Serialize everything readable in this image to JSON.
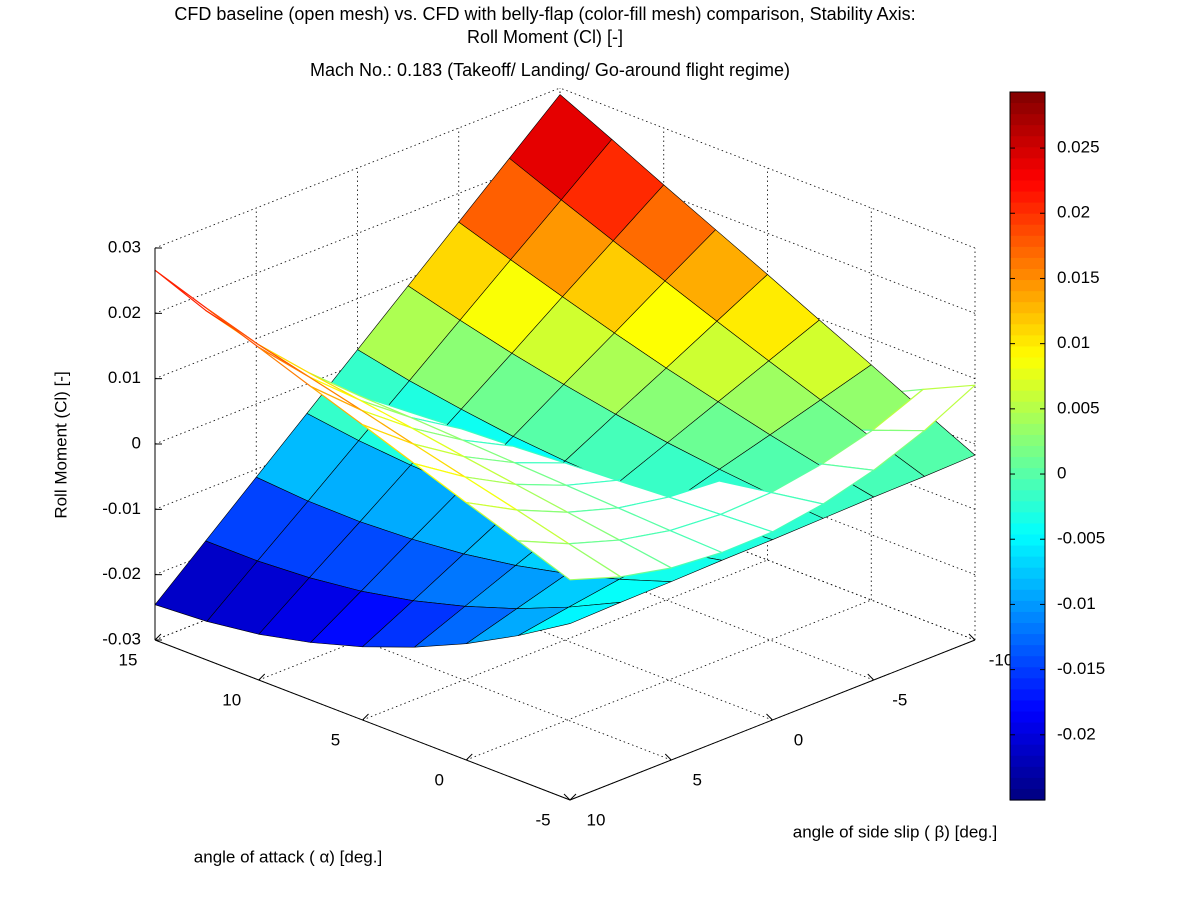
{
  "chart_data": {
    "type": "surface",
    "title": [
      "CFD baseline (open mesh) vs. CFD with belly-flap (color-fill mesh) comparison, Stability Axis:",
      "Roll Moment (Cl) [-]"
    ],
    "subtitle": "Mach No.: 0.183 (Takeoff/ Landing/ Go-around flight regime)",
    "xlabel": "angle of attack ( α) [deg.]",
    "ylabel": "angle of side slip ( β) [deg.]",
    "zlabel": "Roll Moment (Cl) [-]",
    "x": [
      -5,
      -2.5,
      0,
      2.5,
      5,
      7.5,
      10,
      12.5,
      15
    ],
    "y": [
      -10,
      -7.5,
      -5,
      -2.5,
      0,
      2.5,
      5,
      7.5,
      10
    ],
    "xlim": [
      -5,
      15
    ],
    "ylim": [
      -10,
      10
    ],
    "zlim": [
      -0.03,
      0.03
    ],
    "xticks": [
      -5,
      0,
      5,
      10,
      15
    ],
    "yticks": [
      -10,
      -5,
      0,
      5,
      10
    ],
    "zticks": [
      -0.03,
      -0.02,
      -0.01,
      0,
      0.01,
      0.02,
      0.03
    ],
    "grid": true,
    "colormap": "jet",
    "clim": [
      -0.025,
      0.0293
    ],
    "cticks": [
      -0.02,
      -0.015,
      -0.01,
      -0.005,
      0,
      0.005,
      0.01,
      0.015,
      0.02,
      0.025
    ],
    "series": [
      {
        "style": "mesh",
        "z": [
          [
            0.009,
            0.0053,
            0.0015,
            -0.0023,
            -0.006,
            -0.0098,
            -0.0135,
            -0.0173,
            -0.021
          ],
          [
            0.0051,
            0.0021,
            -0.0008,
            -0.0037,
            -0.0066,
            -0.0096,
            -0.0125,
            -0.0154,
            -0.0183
          ],
          [
            0.0021,
            0,
            -0.0021,
            -0.0042,
            -0.0063,
            -0.0084,
            -0.0105,
            -0.0126,
            -0.0147
          ],
          [
            0,
            -0.0013,
            -0.0026,
            -0.0038,
            -0.0051,
            -0.0064,
            -0.0076,
            -0.0089,
            -0.0102
          ],
          [
            -0.0012,
            -0.0016,
            -0.002,
            -0.0025,
            -0.0029,
            -0.0034,
            -0.0038,
            -0.0043,
            -0.0047
          ],
          [
            -0.0013,
            -0.001,
            -0.0006,
            -0.0002,
            0.0002,
            0.0006,
            0.001,
            0.0013,
            0.0017
          ],
          [
            -0.0006,
            0.0006,
            0.0018,
            0.003,
            0.0042,
            0.0055,
            0.0067,
            0.0079,
            0.0091
          ],
          [
            0.0011,
            0.0031,
            0.0052,
            0.0072,
            0.0092,
            0.0113,
            0.0133,
            0.0153,
            0.0174
          ],
          [
            0.0037,
            0.0066,
            0.0094,
            0.0123,
            0.0152,
            0.018,
            0.0209,
            0.0238,
            0.0266
          ]
        ]
      },
      {
        "style": "surface",
        "z": [
          [
            -0.0017,
            0.0021,
            0.006,
            0.0098,
            0.0137,
            0.0175,
            0.0213,
            0.0252,
            0.029
          ],
          [
            -0.0019,
            0.0009,
            0.0037,
            0.0066,
            0.0096,
            0.0127,
            0.0158,
            0.019,
            0.0223
          ],
          [
            -0.002,
            -0.0004,
            0.0014,
            0.0034,
            0.0055,
            0.0078,
            0.0103,
            0.0129,
            0.0156
          ],
          [
            -0.0022,
            -0.0016,
            -0.0008,
            0.0002,
            0.0015,
            0.003,
            0.0047,
            0.0067,
            0.0089
          ],
          [
            -0.0024,
            -0.0029,
            -0.0031,
            -0.003,
            -0.0026,
            -0.0019,
            -0.0008,
            0.0005,
            0.0022
          ],
          [
            -0.0025,
            -0.0041,
            -0.0054,
            -0.0062,
            -0.0066,
            -0.0067,
            -0.0063,
            -0.0056,
            -0.0045
          ],
          [
            -0.0027,
            -0.0054,
            -0.0076,
            -0.0094,
            -0.0107,
            -0.0115,
            -0.0119,
            -0.0118,
            -0.0112
          ],
          [
            -0.0028,
            -0.0066,
            -0.0099,
            -0.0126,
            -0.0148,
            -0.0164,
            -0.0174,
            -0.0179,
            -0.0179
          ],
          [
            -0.003,
            -0.0079,
            -0.0122,
            -0.0158,
            -0.0188,
            -0.0212,
            -0.023,
            -0.0241,
            -0.0246
          ]
        ]
      }
    ]
  }
}
